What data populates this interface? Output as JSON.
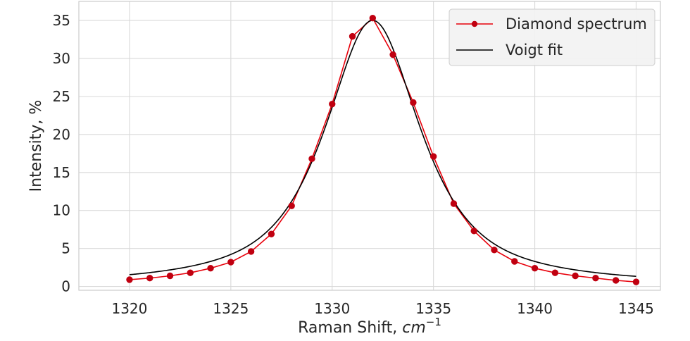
{
  "chart_data": {
    "type": "line",
    "xlabel": "Raman Shift, ",
    "xlabel_math": "cm",
    "xlabel_sup": "−1",
    "ylabel": "Intensity, %",
    "xlim": [
      1317.5,
      1346.2
    ],
    "ylim": [
      -0.5,
      37.5
    ],
    "xticks": [
      1320,
      1325,
      1330,
      1335,
      1340,
      1345
    ],
    "yticks": [
      0,
      5,
      10,
      15,
      20,
      25,
      30,
      35
    ],
    "grid": true,
    "legend_position": "top-right",
    "x": [
      1320,
      1321,
      1322,
      1323,
      1324,
      1325,
      1326,
      1327,
      1328,
      1329,
      1330,
      1331,
      1332,
      1333,
      1334,
      1335,
      1336,
      1337,
      1338,
      1339,
      1340,
      1341,
      1342,
      1343,
      1344,
      1345
    ],
    "series": [
      {
        "name": "Diamond spectrum",
        "color": "#e8000b",
        "marker_color": "#c00010",
        "style": "line-with-markers",
        "values": [
          0.9,
          1.1,
          1.4,
          1.8,
          2.4,
          3.2,
          4.6,
          6.9,
          10.6,
          16.8,
          24.0,
          32.9,
          35.3,
          30.5,
          24.2,
          17.1,
          10.9,
          7.3,
          4.8,
          3.3,
          2.4,
          1.8,
          1.4,
          1.1,
          0.8,
          0.6
        ]
      },
      {
        "name": "Voigt fit",
        "color": "#000000",
        "style": "line",
        "model": "voigt",
        "center": 1332.0,
        "amplitude": 35.0,
        "gaussian_fwhm": 2.5,
        "lorentzian_fwhm": 4.5,
        "x_range": [
          1320,
          1345
        ]
      }
    ]
  }
}
